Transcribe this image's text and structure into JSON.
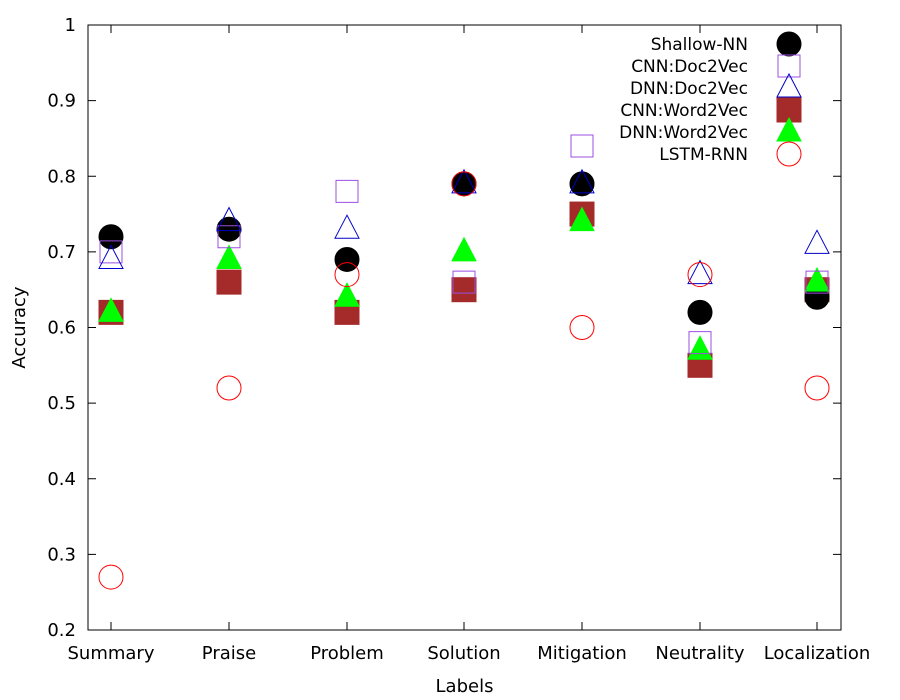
{
  "chart_data": {
    "type": "scatter",
    "xlabel": "Labels",
    "ylabel": "Accuracy",
    "categories": [
      "Summary",
      "Praise",
      "Problem",
      "Solution",
      "Mitigation",
      "Neutrality",
      "Localization"
    ],
    "ylim": [
      0.2,
      1.0
    ],
    "yticks": [
      "0.2",
      "0.3",
      "0.4",
      "0.5",
      "0.6",
      "0.7",
      "0.8",
      "0.9",
      "1"
    ],
    "grid": false,
    "legend_position": "top-right",
    "series": [
      {
        "name": "Shallow-NN",
        "marker": "filled-circle",
        "color": "#000000",
        "values": [
          0.72,
          0.73,
          0.69,
          0.79,
          0.79,
          0.62,
          0.64
        ]
      },
      {
        "name": "CNN:Doc2Vec",
        "marker": "open-square",
        "color": "#9b4fe0",
        "values": [
          0.7,
          0.72,
          0.78,
          0.66,
          0.84,
          0.58,
          0.66
        ]
      },
      {
        "name": "DNN:Doc2Vec",
        "marker": "open-triangle",
        "color": "#0000cc",
        "values": [
          0.69,
          0.74,
          0.73,
          0.79,
          0.79,
          0.67,
          0.71
        ]
      },
      {
        "name": "CNN:Word2Vec",
        "marker": "filled-square",
        "color": "#a52a2a",
        "values": [
          0.62,
          0.66,
          0.62,
          0.65,
          0.75,
          0.55,
          0.65
        ]
      },
      {
        "name": "DNN:Word2Vec",
        "marker": "filled-triangle",
        "color": "#00ff00",
        "values": [
          0.62,
          0.69,
          0.64,
          0.7,
          0.74,
          0.57,
          0.66
        ]
      },
      {
        "name": "LSTM-RNN",
        "marker": "open-circle",
        "color": "#ff0000",
        "values": [
          0.27,
          0.52,
          0.67,
          0.79,
          0.6,
          0.67,
          0.52
        ]
      }
    ]
  }
}
